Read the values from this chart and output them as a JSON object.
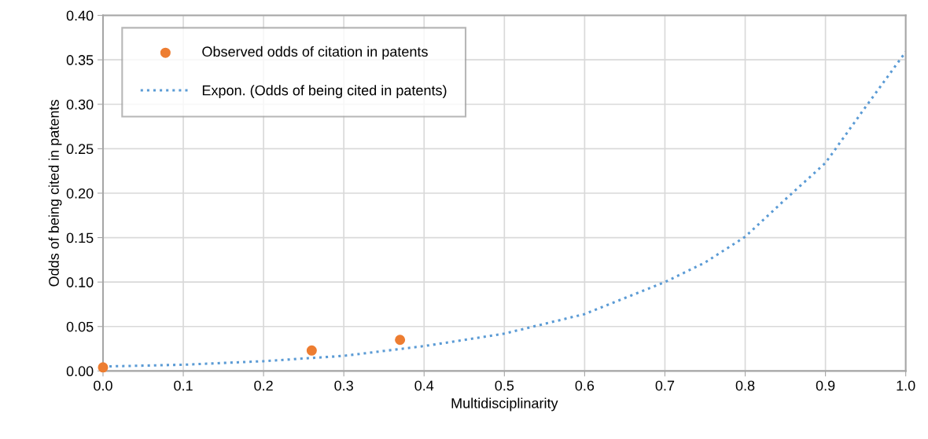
{
  "chart_data": {
    "type": "scatter",
    "xlabel": "Multidisciplinarity",
    "ylabel": "Odds of being cited in patents",
    "xlim": [
      0,
      1
    ],
    "ylim": [
      0,
      0.4
    ],
    "xticks": [
      {
        "value": 0,
        "label": "0.0"
      },
      0.1,
      0.2,
      0.3,
      0.4,
      0.5,
      0.6,
      0.7,
      0.8,
      0.9,
      {
        "value": 1,
        "label": "1.0"
      }
    ],
    "yticks": [
      {
        "value": 0,
        "label": "0.00"
      },
      0.05,
      {
        "value": 0.1,
        "label": "0.10"
      },
      0.15,
      {
        "value": 0.2,
        "label": "0.20"
      },
      0.25,
      {
        "value": 0.3,
        "label": "0.30"
      },
      0.35,
      {
        "value": 0.4,
        "label": "0.40"
      }
    ],
    "grid": true,
    "legend": "top left",
    "series": [
      {
        "name": "Observed odds of citation in patents",
        "marker": "circle",
        "color": "#ed7d31",
        "x": [
          0,
          0.26,
          0.37
        ],
        "values": [
          0.004,
          0.023,
          0.035
        ]
      },
      {
        "name": "Expon. (Odds of being cited in patents)",
        "type": "line",
        "line_style": "dotted",
        "marker": "none",
        "color": "#5b9bd5",
        "x": [
          0,
          0.1,
          0.2,
          0.3,
          0.4,
          0.45,
          0.5,
          0.55,
          0.6,
          0.65,
          0.7,
          0.75,
          0.8,
          0.85,
          0.9,
          0.95,
          1.0
        ],
        "values": [
          0.005,
          0.007,
          0.011,
          0.017,
          0.028,
          0.035,
          0.042,
          0.053,
          0.064,
          0.082,
          0.1,
          0.122,
          0.151,
          0.193,
          0.234,
          0.297,
          0.359
        ]
      }
    ]
  }
}
